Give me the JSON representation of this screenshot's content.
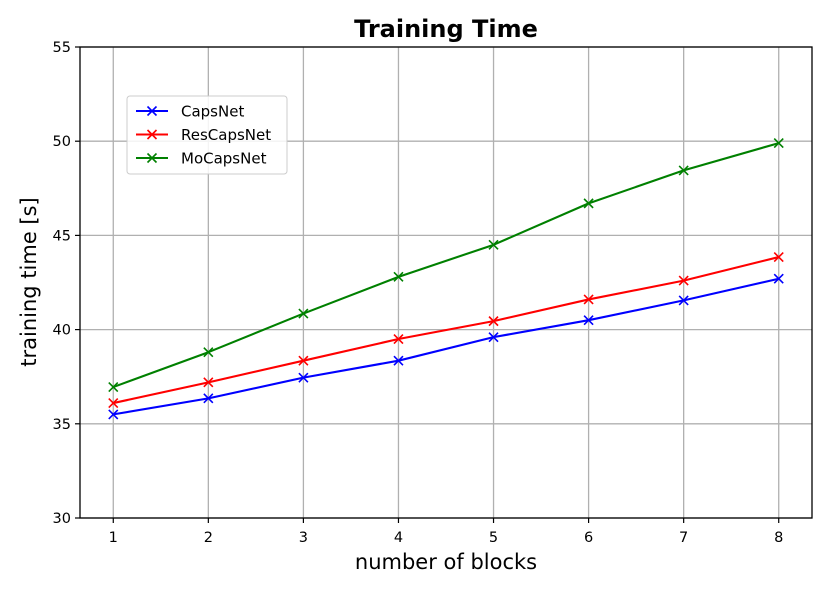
{
  "chart_data": {
    "type": "line",
    "title": "Training Time",
    "xlabel": "number of blocks",
    "ylabel": "training time [s]",
    "x": [
      1,
      2,
      3,
      4,
      5,
      6,
      7,
      8
    ],
    "xlim": [
      0.65,
      8.35
    ],
    "ylim": [
      30,
      55
    ],
    "xticks": [
      "1",
      "2",
      "3",
      "4",
      "5",
      "6",
      "7",
      "8"
    ],
    "yticks": [
      "30",
      "35",
      "40",
      "45",
      "50",
      "55"
    ],
    "grid": true,
    "legend_position": "upper-left",
    "marker": "x",
    "series": [
      {
        "name": "CapsNet",
        "color": "#0000ff",
        "values": [
          35.5,
          36.35,
          37.45,
          38.35,
          39.6,
          40.5,
          41.55,
          42.7
        ]
      },
      {
        "name": "ResCapsNet",
        "color": "#ff0000",
        "values": [
          36.1,
          37.2,
          38.35,
          39.5,
          40.45,
          41.6,
          42.6,
          43.85
        ]
      },
      {
        "name": "MoCapsNet",
        "color": "#008000",
        "values": [
          36.95,
          38.8,
          40.85,
          42.8,
          44.5,
          46.7,
          48.45,
          49.9
        ]
      }
    ]
  }
}
